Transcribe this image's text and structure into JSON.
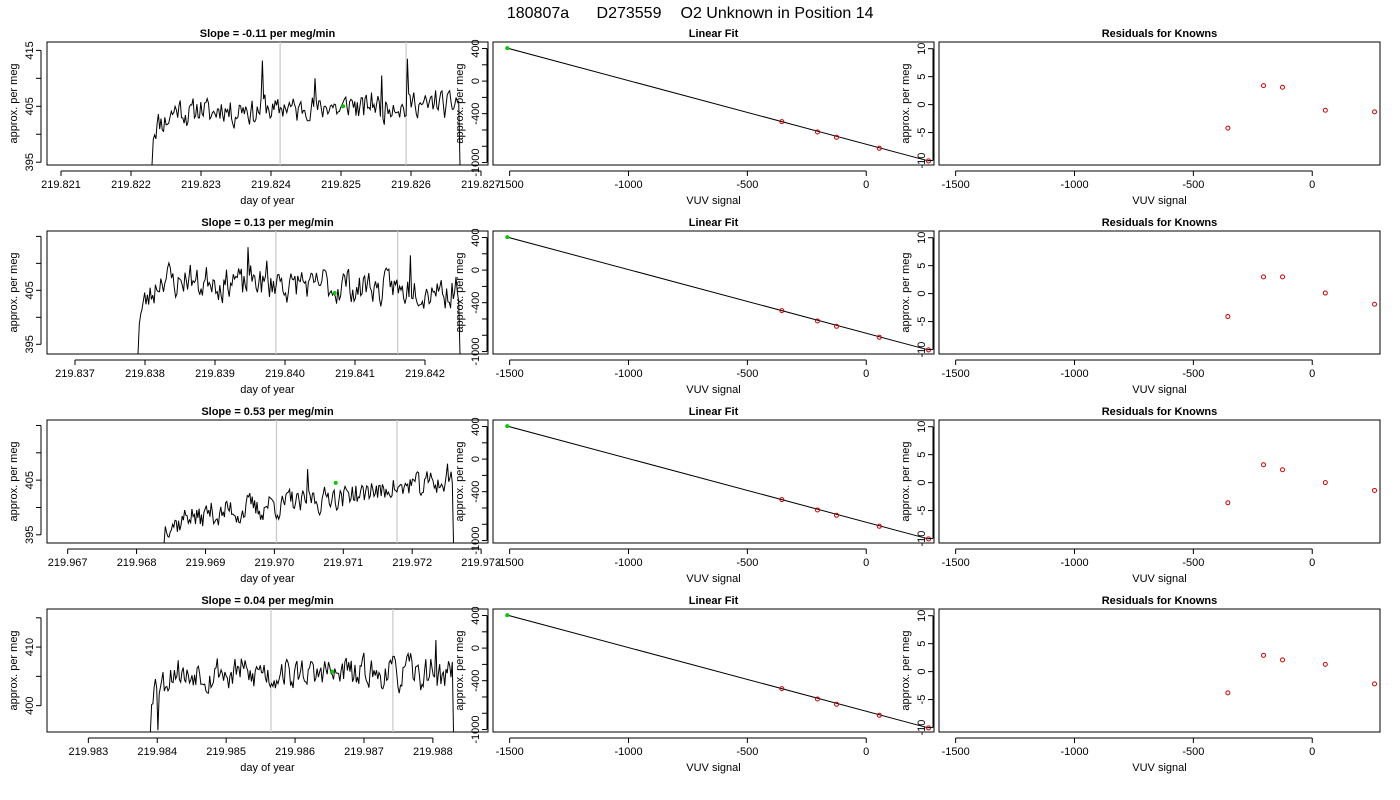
{
  "title": {
    "run": "180807a",
    "tank": "D273559",
    "desc": "O2 Unknown in Position  14"
  },
  "colors": {
    "line": "#000000",
    "guide": "#c8c8c8",
    "unknown": "#00cc00",
    "known": "#cc0000"
  },
  "chart_data": [
    {
      "type": "line",
      "title": "Slope =  -0.11  per meg/min",
      "xlabel": "day of year",
      "ylabel": "approx. per meg",
      "xlim": [
        219.8208,
        219.8271
      ],
      "ylim": [
        394.5,
        416.5
      ],
      "xticks": [
        219.821,
        219.822,
        219.823,
        219.824,
        219.825,
        219.826,
        219.827
      ],
      "xticklabels": [
        "219.821",
        "219.822",
        "219.823",
        "219.824",
        "219.825",
        "219.826",
        "219.827"
      ],
      "yticks": [
        395,
        405,
        415
      ],
      "yticklabels": [
        "395",
        "405",
        "415"
      ],
      "minor_yticks": [
        400,
        410
      ],
      "trace": {
        "start": 219.8223,
        "end": 219.8267,
        "ramp_start": 394.5,
        "ramp_top": 400.0,
        "level_start": 404.0,
        "level_end": 405.5,
        "noise": 1.7,
        "end_value": 394.5,
        "seed": 11
      },
      "spikes": [
        [
          219.82388,
          413.2
        ],
        [
          219.82594,
          413.5
        ],
        [
          219.82558,
          410.5
        ],
        [
          219.82462,
          410.0
        ]
      ],
      "guides": [
        219.82413,
        219.82593
      ],
      "unknown_marker": {
        "x": 219.82503,
        "y": 405.0
      }
    },
    {
      "type": "scatter",
      "title": "Linear Fit",
      "xlabel": "VUV signal",
      "ylabel": "approx. per meg",
      "xlim": [
        -1570,
        285
      ],
      "ylim": [
        -1030,
        480
      ],
      "xticks": [
        -1500,
        -1000,
        -500,
        0
      ],
      "xticklabels": [
        "-1500",
        "-1000",
        "-500",
        "0"
      ],
      "yticks": [
        400,
        0,
        -400,
        -1000
      ],
      "yticklabels": [
        "400",
        "0",
        "-400",
        "-1000"
      ],
      "minor_yticks": [
        200,
        -200,
        -600,
        -800
      ],
      "fit_line": {
        "x": [
          -1510,
          262
        ],
        "y": [
          405,
          -980
        ]
      },
      "unknown": [
        {
          "x": -1510,
          "y": 405
        }
      ],
      "knowns": [
        {
          "x": -355,
          "y": -497
        },
        {
          "x": -205,
          "y": -625
        },
        {
          "x": -125,
          "y": -690
        },
        {
          "x": 55,
          "y": -825
        },
        {
          "x": 262,
          "y": -980
        }
      ]
    },
    {
      "type": "scatter",
      "title": "Residuals for Knowns",
      "xlabel": "VUV signal",
      "ylabel": "approx. per meg",
      "xlim": [
        -1570,
        285
      ],
      "ylim": [
        -10.8,
        11.2
      ],
      "xticks": [
        -1500,
        -1000,
        -500,
        0
      ],
      "xticklabels": [
        "-1500",
        "-1000",
        "-500",
        "0"
      ],
      "yticks": [
        10,
        5,
        0,
        -5,
        -10
      ],
      "yticklabels": [
        "10",
        "5",
        "0",
        "-5",
        "-10"
      ],
      "knowns": [
        {
          "x": -355,
          "y": -4.2
        },
        {
          "x": -205,
          "y": 3.4
        },
        {
          "x": -125,
          "y": 3.1
        },
        {
          "x": 55,
          "y": -1.0
        },
        {
          "x": 262,
          "y": -1.3
        }
      ]
    },
    {
      "type": "line",
      "title": "Slope =  0.13  per meg/min",
      "xlabel": "day of year",
      "ylabel": "approx. per meg",
      "xlim": [
        219.8366,
        219.8429
      ],
      "ylim": [
        393.2,
        416.0
      ],
      "xticks": [
        219.837,
        219.838,
        219.839,
        219.84,
        219.841,
        219.842
      ],
      "xticklabels": [
        "219.837",
        "219.838",
        "219.839",
        "219.840",
        "219.841",
        "219.842"
      ],
      "yticks": [
        395,
        405
      ],
      "yticklabels": [
        "395",
        "405"
      ],
      "minor_yticks": [
        400,
        410,
        415
      ],
      "trace": {
        "start": 219.8379,
        "end": 219.8425,
        "ramp_start": 393.2,
        "ramp_top": 399.0,
        "level_start": 407.0,
        "level_end": 405.0,
        "noise": 2.0,
        "end_value": 393.2,
        "seed": 23
      },
      "spikes": [
        [
          219.83948,
          413.0
        ],
        [
          219.83974,
          410.5
        ],
        [
          219.8418,
          411.5
        ]
      ],
      "guides": [
        219.83987,
        219.84161
      ],
      "unknown_marker": {
        "x": 219.84071,
        "y": 404.5
      }
    },
    {
      "type": "scatter",
      "title": "Linear Fit",
      "xlabel": "VUV signal",
      "ylabel": "approx. per meg",
      "xlim": [
        -1570,
        285
      ],
      "ylim": [
        -1030,
        480
      ],
      "xticks": [
        -1500,
        -1000,
        -500,
        0
      ],
      "xticklabels": [
        "-1500",
        "-1000",
        "-500",
        "0"
      ],
      "yticks": [
        400,
        0,
        -400,
        -1000
      ],
      "yticklabels": [
        "400",
        "0",
        "-400",
        "-1000"
      ],
      "minor_yticks": [
        200,
        -200,
        -600,
        -800
      ],
      "fit_line": {
        "x": [
          -1510,
          262
        ],
        "y": [
          405,
          -980
        ]
      },
      "unknown": [
        {
          "x": -1510,
          "y": 405
        }
      ],
      "knowns": [
        {
          "x": -355,
          "y": -497
        },
        {
          "x": -205,
          "y": -625
        },
        {
          "x": -125,
          "y": -690
        },
        {
          "x": 55,
          "y": -825
        },
        {
          "x": 262,
          "y": -980
        }
      ]
    },
    {
      "type": "scatter",
      "title": "Residuals for Knowns",
      "xlabel": "VUV signal",
      "ylabel": "approx. per meg",
      "xlim": [
        -1570,
        285
      ],
      "ylim": [
        -10.8,
        11.2
      ],
      "xticks": [
        -1500,
        -1000,
        -500,
        0
      ],
      "xticklabels": [
        "-1500",
        "-1000",
        "-500",
        "0"
      ],
      "yticks": [
        10,
        5,
        0,
        -5,
        -10
      ],
      "yticklabels": [
        "10",
        "5",
        "0",
        "-5",
        "-10"
      ],
      "knowns": [
        {
          "x": -355,
          "y": -4.1
        },
        {
          "x": -205,
          "y": 3.0
        },
        {
          "x": -125,
          "y": 3.0
        },
        {
          "x": 55,
          "y": 0.1
        },
        {
          "x": 262,
          "y": -1.9
        }
      ]
    },
    {
      "type": "line",
      "title": "Slope =  0.53  per meg/min",
      "xlabel": "day of year",
      "ylabel": "approx. per meg",
      "xlim": [
        219.9667,
        219.9731
      ],
      "ylim": [
        393.5,
        416.0
      ],
      "xticks": [
        219.967,
        219.968,
        219.969,
        219.97,
        219.971,
        219.972,
        219.973
      ],
      "xticklabels": [
        "219.967",
        "219.968",
        "219.969",
        "219.970",
        "219.971",
        "219.972",
        "219.973"
      ],
      "yticks": [
        395,
        405
      ],
      "yticklabels": [
        "395",
        "405"
      ],
      "minor_yticks": [
        400,
        410,
        415
      ],
      "trace": {
        "start": 219.9684,
        "end": 219.9726,
        "ramp_start": 393.5,
        "ramp_top": 396.0,
        "level_start": 398.0,
        "level_end": 405.0,
        "noise": 1.5,
        "end_value": 393.5,
        "seed": 37
      },
      "spikes": [
        [
          219.97251,
          408.0
        ],
        [
          219.97049,
          407.0
        ]
      ],
      "guides": [
        219.97003,
        219.97178
      ],
      "unknown_marker": {
        "x": 219.97089,
        "y": 404.5
      }
    },
    {
      "type": "scatter",
      "title": "Linear Fit",
      "xlabel": "VUV signal",
      "ylabel": "approx. per meg",
      "xlim": [
        -1570,
        285
      ],
      "ylim": [
        -1030,
        480
      ],
      "xticks": [
        -1500,
        -1000,
        -500,
        0
      ],
      "xticklabels": [
        "-1500",
        "-1000",
        "-500",
        "0"
      ],
      "yticks": [
        400,
        0,
        -400,
        -1000
      ],
      "yticklabels": [
        "400",
        "0",
        "-400",
        "-1000"
      ],
      "minor_yticks": [
        200,
        -200,
        -600,
        -800
      ],
      "fit_line": {
        "x": [
          -1510,
          262
        ],
        "y": [
          405,
          -980
        ]
      },
      "unknown": [
        {
          "x": -1510,
          "y": 405
        }
      ],
      "knowns": [
        {
          "x": -355,
          "y": -497
        },
        {
          "x": -205,
          "y": -625
        },
        {
          "x": -125,
          "y": -690
        },
        {
          "x": 55,
          "y": -825
        },
        {
          "x": 262,
          "y": -980
        }
      ]
    },
    {
      "type": "scatter",
      "title": "Residuals for Knowns",
      "xlabel": "VUV signal",
      "ylabel": "approx. per meg",
      "xlim": [
        -1570,
        285
      ],
      "ylim": [
        -10.8,
        11.2
      ],
      "xticks": [
        -1500,
        -1000,
        -500,
        0
      ],
      "xticklabels": [
        "-1500",
        "-1000",
        "-500",
        "0"
      ],
      "yticks": [
        10,
        5,
        0,
        -5,
        -10
      ],
      "yticklabels": [
        "10",
        "5",
        "0",
        "-5",
        "-10"
      ],
      "knowns": [
        {
          "x": -355,
          "y": -3.6
        },
        {
          "x": -205,
          "y": 3.2
        },
        {
          "x": -125,
          "y": 2.3
        },
        {
          "x": 55,
          "y": 0.0
        },
        {
          "x": 262,
          "y": -1.4
        }
      ]
    },
    {
      "type": "line",
      "title": "Slope =  0.04  per meg/min",
      "xlabel": "day of year",
      "ylabel": "approx. per meg",
      "xlim": [
        219.9824,
        219.9888
      ],
      "ylim": [
        395.5,
        416.5
      ],
      "xticks": [
        219.983,
        219.984,
        219.985,
        219.986,
        219.987,
        219.988
      ],
      "xticklabels": [
        "219.983",
        "219.984",
        "219.985",
        "219.986",
        "219.987",
        "219.988"
      ],
      "yticks": [
        400,
        410
      ],
      "yticklabels": [
        "400",
        "410"
      ],
      "minor_yticks": [
        405,
        415
      ],
      "trace": {
        "start": 219.9839,
        "end": 219.9883,
        "ramp_start": 395.5,
        "ramp_top": 402.0,
        "level_start": 405.5,
        "level_end": 405.5,
        "noise": 1.8,
        "end_value": 395.5,
        "seed": 53
      },
      "spikes": [
        [
          219.98401,
          395.8
        ],
        [
          219.98805,
          411.2
        ]
      ],
      "guides": [
        219.98565,
        219.98742
      ],
      "unknown_marker": {
        "x": 219.98654,
        "y": 405.8
      }
    },
    {
      "type": "scatter",
      "title": "Linear Fit",
      "xlabel": "VUV signal",
      "ylabel": "approx. per meg",
      "xlim": [
        -1570,
        285
      ],
      "ylim": [
        -1030,
        480
      ],
      "xticks": [
        -1500,
        -1000,
        -500,
        0
      ],
      "xticklabels": [
        "-1500",
        "-1000",
        "-500",
        "0"
      ],
      "yticks": [
        400,
        0,
        -400,
        -1000
      ],
      "yticklabels": [
        "400",
        "0",
        "-400",
        "-1000"
      ],
      "minor_yticks": [
        200,
        -200,
        -600,
        -800
      ],
      "fit_line": {
        "x": [
          -1510,
          262
        ],
        "y": [
          405,
          -980
        ]
      },
      "unknown": [
        {
          "x": -1510,
          "y": 405
        }
      ],
      "knowns": [
        {
          "x": -355,
          "y": -497
        },
        {
          "x": -205,
          "y": -625
        },
        {
          "x": -125,
          "y": -690
        },
        {
          "x": 55,
          "y": -825
        },
        {
          "x": 262,
          "y": -980
        }
      ]
    },
    {
      "type": "scatter",
      "title": "Residuals for Knowns",
      "xlabel": "VUV signal",
      "ylabel": "approx. per meg",
      "xlim": [
        -1570,
        285
      ],
      "ylim": [
        -10.8,
        11.2
      ],
      "xticks": [
        -1500,
        -1000,
        -500,
        0
      ],
      "xticklabels": [
        "-1500",
        "-1000",
        "-500",
        "0"
      ],
      "yticks": [
        10,
        5,
        0,
        -5,
        -10
      ],
      "yticklabels": [
        "10",
        "5",
        "0",
        "-5",
        "-10"
      ],
      "knowns": [
        {
          "x": -355,
          "y": -3.8
        },
        {
          "x": -205,
          "y": 2.9
        },
        {
          "x": -125,
          "y": 2.1
        },
        {
          "x": 55,
          "y": 1.3
        },
        {
          "x": 262,
          "y": -2.2
        }
      ]
    }
  ]
}
